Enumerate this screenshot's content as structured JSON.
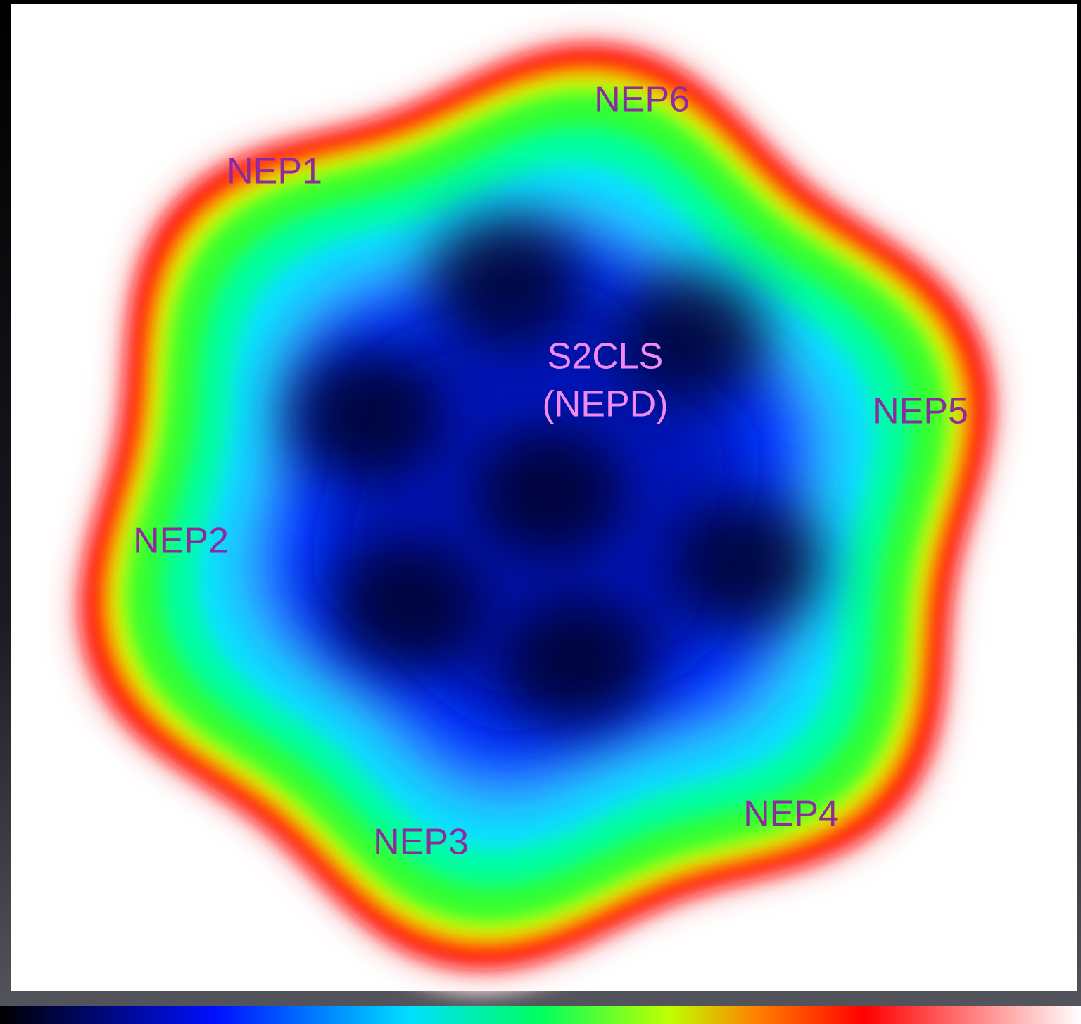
{
  "fields": [
    {
      "label": "NEP1"
    },
    {
      "label": "NEP2"
    },
    {
      "label": "NEP3"
    },
    {
      "label": "NEP4"
    },
    {
      "label": "NEP5"
    },
    {
      "label": "NEP6"
    }
  ],
  "center_field": {
    "lines": [
      "S2CLS",
      "(NEPD)"
    ]
  }
}
